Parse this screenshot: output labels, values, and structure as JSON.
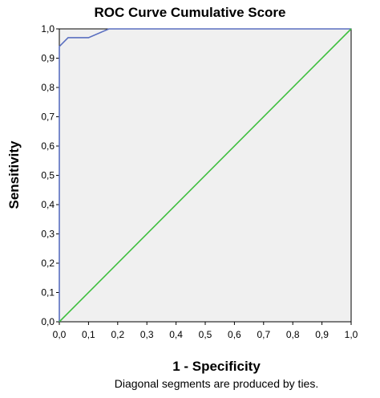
{
  "chart_data": {
    "type": "line",
    "title": "ROC Curve Cumulative Score",
    "xlabel": "1 - Specificity",
    "ylabel": "Sensitivity",
    "footnote": "Diagonal segments are produced by ties.",
    "xlim": [
      0,
      1
    ],
    "ylim": [
      0,
      1
    ],
    "grid": false,
    "x_ticks": [
      "0,0",
      "0,1",
      "0,2",
      "0,3",
      "0,4",
      "0,5",
      "0,6",
      "0,7",
      "0,8",
      "0,9",
      "1,0"
    ],
    "y_ticks": [
      "0,0",
      "0,1",
      "0,2",
      "0,3",
      "0,4",
      "0,5",
      "0,6",
      "0,7",
      "0,8",
      "0,9",
      "1,0"
    ],
    "series": [
      {
        "color": "#5a6fc0",
        "points": [
          [
            0,
            0
          ],
          [
            0,
            0.94
          ],
          [
            0.03,
            0.97
          ],
          [
            0.1,
            0.97
          ],
          [
            0.17,
            1.0
          ],
          [
            1.0,
            1.0
          ]
        ]
      },
      {
        "color": "#3fbf3f",
        "points": [
          [
            0,
            0
          ],
          [
            1,
            1
          ]
        ]
      }
    ],
    "background_color": "#f0f0f0"
  }
}
